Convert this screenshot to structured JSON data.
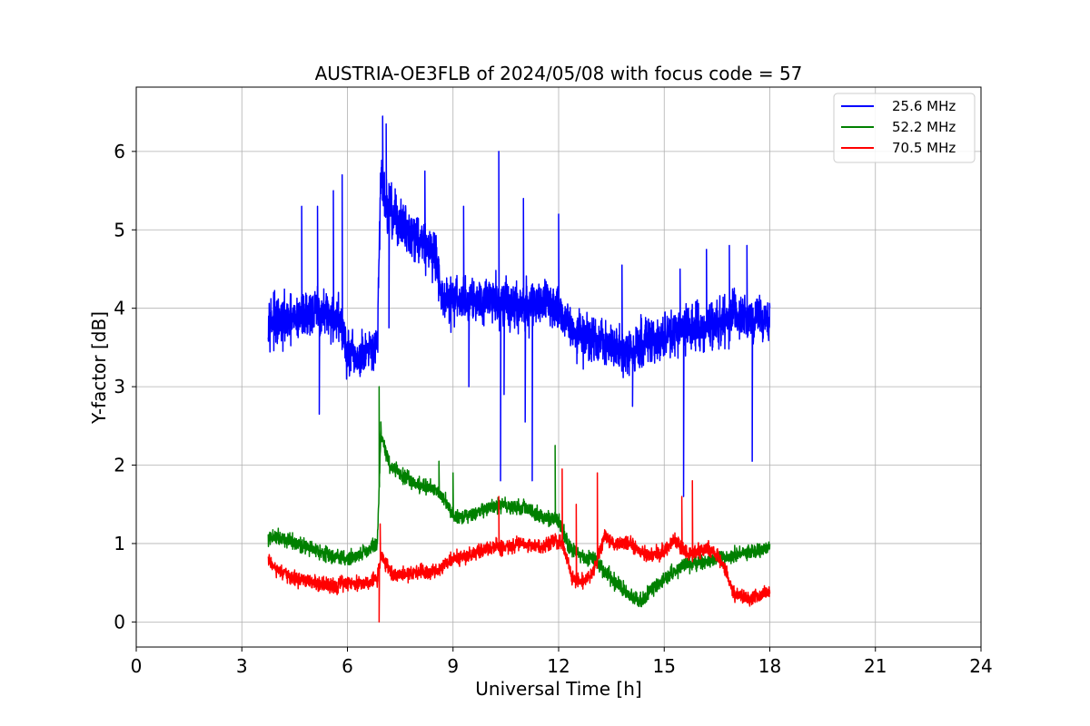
{
  "chart_data": {
    "type": "line",
    "title": "AUSTRIA-OE3FLB of 2024/05/08 with focus code = 57",
    "xlabel": "Universal Time [h]",
    "ylabel": "Y-factor [dB]",
    "xlim": [
      0,
      24
    ],
    "ylim": [
      -0.32,
      6.82
    ],
    "xticks": [
      0,
      3,
      6,
      9,
      12,
      15,
      18,
      21,
      24
    ],
    "yticks": [
      0,
      1,
      2,
      3,
      4,
      5,
      6
    ],
    "xtick_labels": [
      "0",
      "3",
      "6",
      "9",
      "12",
      "15",
      "18",
      "21",
      "24"
    ],
    "ytick_labels": [
      "0",
      "1",
      "2",
      "3",
      "4",
      "5",
      "6"
    ],
    "grid": true,
    "legend_position": "top-right",
    "series": [
      {
        "name": "25.6 MHz",
        "color": "#0000ff",
        "noise": 0.45,
        "x": [
          3.75,
          4.0,
          4.5,
          5.0,
          5.5,
          5.8,
          6.0,
          6.3,
          6.6,
          6.85,
          6.95,
          7.1,
          7.5,
          8.0,
          8.5,
          8.7,
          9.0,
          9.5,
          10.0,
          10.5,
          11.0,
          11.5,
          12.0,
          12.3,
          12.6,
          13.0,
          13.5,
          14.0,
          14.5,
          15.0,
          15.5,
          16.0,
          16.5,
          17.0,
          17.5,
          18.0
        ],
        "y": [
          3.9,
          3.8,
          3.85,
          3.95,
          3.9,
          3.85,
          3.4,
          3.35,
          3.4,
          3.5,
          5.8,
          5.3,
          5.1,
          4.9,
          4.7,
          4.1,
          4.1,
          4.1,
          4.15,
          4.05,
          4.0,
          4.1,
          4.0,
          3.8,
          3.65,
          3.6,
          3.5,
          3.45,
          3.55,
          3.6,
          3.7,
          3.75,
          3.8,
          3.9,
          3.85,
          3.9
        ],
        "spikes": [
          [
            4.7,
            5.3
          ],
          [
            5.15,
            5.3
          ],
          [
            5.2,
            2.65
          ],
          [
            5.6,
            5.5
          ],
          [
            5.85,
            5.7
          ],
          [
            7.0,
            6.45
          ],
          [
            7.1,
            6.35
          ],
          [
            7.18,
            3.75
          ],
          [
            7.25,
            5.6
          ],
          [
            8.2,
            5.75
          ],
          [
            9.3,
            5.3
          ],
          [
            9.45,
            3.0
          ],
          [
            10.3,
            6.0
          ],
          [
            10.35,
            1.8
          ],
          [
            10.45,
            2.9
          ],
          [
            11.0,
            5.4
          ],
          [
            11.05,
            2.55
          ],
          [
            11.25,
            1.8
          ],
          [
            12.0,
            5.2
          ],
          [
            13.8,
            4.55
          ],
          [
            14.1,
            2.75
          ],
          [
            15.45,
            4.5
          ],
          [
            15.55,
            1.6
          ],
          [
            16.2,
            4.75
          ],
          [
            16.85,
            4.8
          ],
          [
            17.35,
            4.8
          ],
          [
            17.5,
            2.05
          ]
        ]
      },
      {
        "name": "52.2 MHz",
        "color": "#008000",
        "noise": 0.14,
        "x": [
          3.75,
          4.0,
          4.5,
          5.0,
          5.5,
          6.0,
          6.5,
          6.85,
          6.95,
          7.2,
          7.6,
          8.0,
          8.5,
          8.7,
          9.0,
          9.5,
          10.0,
          10.5,
          11.0,
          11.5,
          12.0,
          12.3,
          12.6,
          13.0,
          13.5,
          14.0,
          14.3,
          14.6,
          15.0,
          15.5,
          16.0,
          16.5,
          17.0,
          17.5,
          18.0
        ],
        "y": [
          1.05,
          1.1,
          1.0,
          0.95,
          0.85,
          0.8,
          0.9,
          1.0,
          2.4,
          2.0,
          1.85,
          1.75,
          1.7,
          1.6,
          1.35,
          1.35,
          1.45,
          1.5,
          1.45,
          1.35,
          1.3,
          0.95,
          0.85,
          0.8,
          0.55,
          0.35,
          0.25,
          0.4,
          0.55,
          0.7,
          0.75,
          0.8,
          0.85,
          0.9,
          0.95
        ],
        "spikes": [
          [
            6.9,
            3.0
          ],
          [
            6.95,
            2.55
          ],
          [
            8.6,
            2.05
          ],
          [
            11.9,
            2.25
          ],
          [
            9.0,
            1.9
          ]
        ]
      },
      {
        "name": "70.5 MHz",
        "color": "#ff0000",
        "noise": 0.14,
        "x": [
          3.75,
          4.0,
          4.5,
          5.0,
          5.5,
          6.0,
          6.5,
          6.85,
          6.95,
          7.3,
          7.6,
          8.0,
          8.5,
          9.0,
          9.5,
          10.0,
          10.5,
          11.0,
          11.5,
          11.8,
          12.1,
          12.4,
          12.7,
          13.0,
          13.3,
          13.6,
          14.0,
          14.5,
          15.0,
          15.3,
          15.7,
          16.2,
          16.6,
          17.0,
          17.5,
          18.0
        ],
        "y": [
          0.8,
          0.65,
          0.55,
          0.5,
          0.45,
          0.5,
          0.5,
          0.55,
          0.85,
          0.6,
          0.6,
          0.65,
          0.65,
          0.8,
          0.85,
          0.95,
          0.95,
          1.0,
          0.95,
          1.05,
          1.0,
          0.55,
          0.5,
          0.65,
          1.1,
          1.0,
          1.0,
          0.85,
          0.9,
          1.05,
          0.85,
          0.95,
          0.8,
          0.35,
          0.3,
          0.4
        ],
        "spikes": [
          [
            6.9,
            0.0
          ],
          [
            6.93,
            1.25
          ],
          [
            10.3,
            1.6
          ],
          [
            12.1,
            1.95
          ],
          [
            13.1,
            1.9
          ],
          [
            15.5,
            1.6
          ],
          [
            15.8,
            1.8
          ],
          [
            12.5,
            1.5
          ]
        ]
      }
    ]
  }
}
